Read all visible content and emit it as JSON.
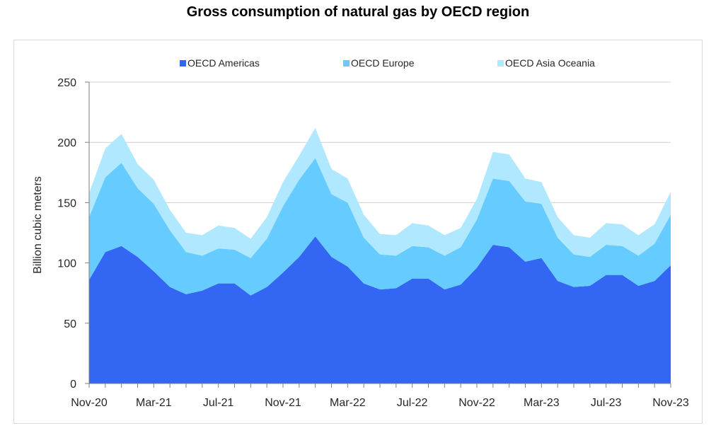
{
  "chart_data": {
    "type": "area",
    "stacked": true,
    "title": "Gross consumption of natural gas by OECD region",
    "xlabel": "",
    "ylabel": "Billion cubic meters",
    "ylim": [
      0,
      250
    ],
    "yticks": [
      0,
      50,
      100,
      150,
      200,
      250
    ],
    "grid": true,
    "legend_position": "top",
    "x": [
      "Nov-20",
      "Dec-20",
      "Jan-21",
      "Feb-21",
      "Mar-21",
      "Apr-21",
      "May-21",
      "Jun-21",
      "Jul-21",
      "Aug-21",
      "Sep-21",
      "Oct-21",
      "Nov-21",
      "Dec-21",
      "Jan-22",
      "Feb-22",
      "Mar-22",
      "Apr-22",
      "May-22",
      "Jun-22",
      "Jul-22",
      "Aug-22",
      "Sep-22",
      "Oct-22",
      "Nov-22",
      "Dec-22",
      "Jan-23",
      "Feb-23",
      "Mar-23",
      "Apr-23",
      "May-23",
      "Jun-23",
      "Jul-23",
      "Aug-23",
      "Sep-23",
      "Oct-23",
      "Nov-23"
    ],
    "xtick_labels": [
      "Nov-20",
      "Mar-21",
      "Jul-21",
      "Nov-21",
      "Mar-22",
      "Jul-22",
      "Nov-22",
      "Mar-23",
      "Jul-23",
      "Nov-23"
    ],
    "series": [
      {
        "name": "OECD Americas",
        "color": "#3366f2",
        "values": [
          86,
          109,
          114,
          105,
          93,
          80,
          74,
          77,
          83,
          83,
          73,
          80,
          92,
          105,
          122,
          105,
          97,
          83,
          78,
          79,
          87,
          87,
          78,
          82,
          96,
          115,
          113,
          101,
          104,
          85,
          80,
          81,
          90,
          90,
          81,
          85,
          98
        ]
      },
      {
        "name": "OECD Europe",
        "color": "#66ccff",
        "values": [
          52,
          62,
          69,
          57,
          56,
          47,
          35,
          29,
          29,
          28,
          31,
          40,
          55,
          64,
          65,
          52,
          53,
          38,
          29,
          27,
          27,
          26,
          28,
          31,
          40,
          55,
          55,
          50,
          45,
          36,
          27,
          24,
          25,
          24,
          25,
          31,
          42
        ]
      },
      {
        "name": "OECD Asia Oceania",
        "color": "#b0e8ff",
        "values": [
          20,
          24,
          24,
          20,
          20,
          17,
          16,
          17,
          19,
          18,
          16,
          18,
          20,
          20,
          25,
          21,
          20,
          19,
          17,
          17,
          19,
          18,
          17,
          16,
          17,
          22,
          22,
          19,
          18,
          17,
          16,
          16,
          18,
          18,
          17,
          16,
          19
        ]
      }
    ]
  }
}
